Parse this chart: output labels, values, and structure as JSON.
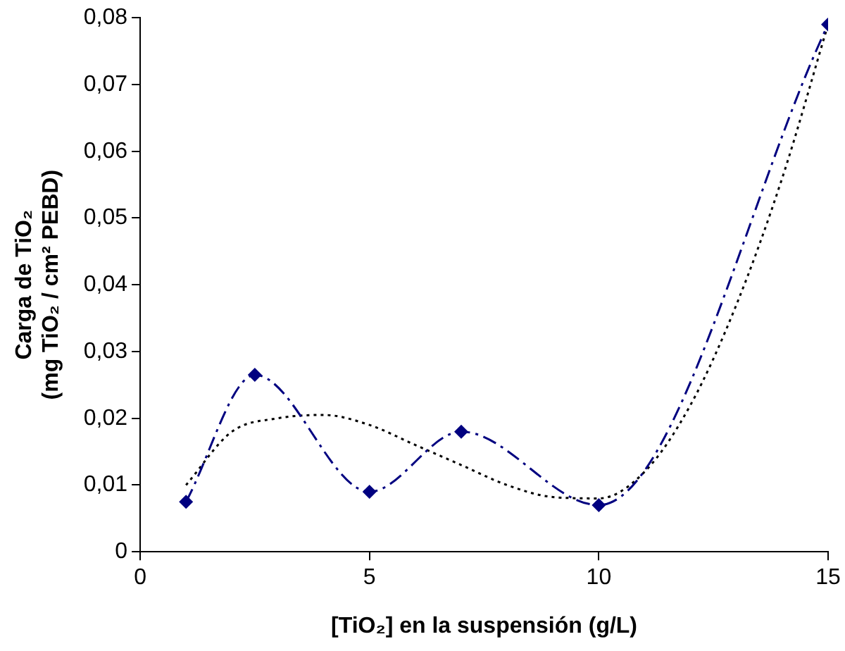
{
  "chart_data": {
    "type": "line",
    "xlabel": "[TiO₂] en la suspensión (g/L)",
    "ylabel": "Carga de TiO₂\n(mg TiO₂ / cm² PEBD)",
    "series": [
      {
        "color": "#000080",
        "x": [
          1,
          2.5,
          5,
          7,
          10,
          15
        ],
        "values": [
          0.0075,
          0.0265,
          0.009,
          0.018,
          0.007,
          0.079
        ],
        "marker": "diamond",
        "line_style": "dashed"
      },
      {
        "color": "#000000",
        "x": [
          1,
          2,
          3,
          4,
          5,
          6,
          7,
          8,
          9,
          10,
          11,
          12,
          13,
          14,
          15
        ],
        "values": [
          0.01,
          0.018,
          0.02,
          0.0205,
          0.019,
          0.016,
          0.013,
          0.01,
          0.0082,
          0.008,
          0.012,
          0.022,
          0.037,
          0.056,
          0.079
        ],
        "marker": "none",
        "line_style": "dotted"
      }
    ],
    "xlim": [
      0,
      15
    ],
    "xticks": [
      0,
      5,
      10,
      15
    ],
    "ylim": [
      0,
      0.08
    ],
    "yticks": [
      0,
      {
        "value": 0.01,
        "label": "0,01"
      },
      {
        "value": 0.02,
        "label": "0,02"
      },
      {
        "value": 0.03,
        "label": "0,03"
      },
      {
        "value": 0.04,
        "label": "0,04"
      },
      {
        "value": 0.05,
        "label": "0,05"
      },
      {
        "value": 0.06,
        "label": "0,06"
      },
      {
        "value": 0.07,
        "label": "0,07"
      },
      {
        "value": 0.08,
        "label": "0,08"
      }
    ],
    "grid": false,
    "legend": false
  }
}
